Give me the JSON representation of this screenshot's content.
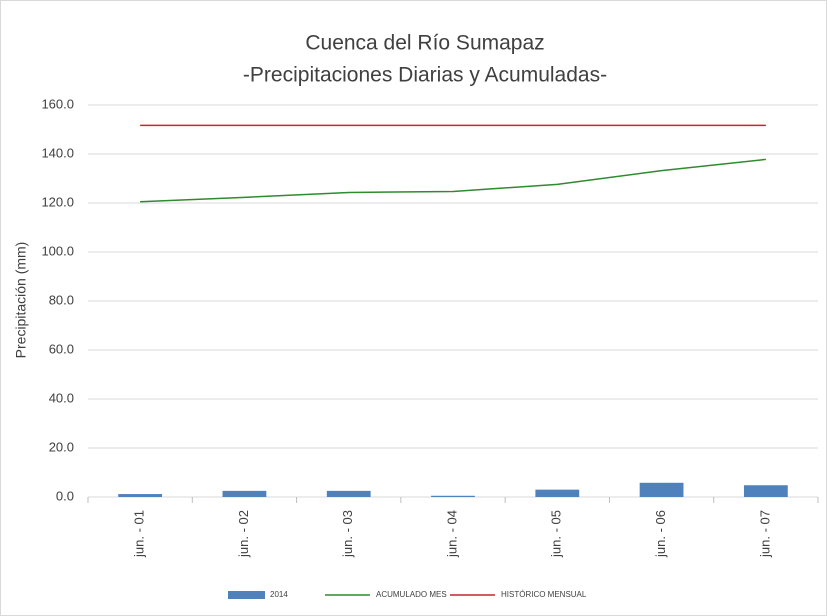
{
  "chart_data": {
    "type": "bar_line",
    "title": "Cuenca del Río Sumapaz",
    "subtitle": "-Precipitaciones Diarias y Acumuladas-",
    "y_label": "Precipitación (mm)",
    "categories": [
      "jun. - 01",
      "jun. - 02",
      "jun. - 03",
      "jun. - 04",
      "jun. - 05",
      "jun. - 06",
      "jun. - 07"
    ],
    "series": [
      {
        "name": "2014",
        "type": "bar",
        "color": "#4f81bd",
        "values": [
          1.2,
          2.5,
          2.5,
          0.5,
          3.0,
          5.8,
          4.8
        ]
      },
      {
        "name": "ACUMULADO MES",
        "type": "line",
        "color": "#2e8b2e",
        "values": [
          120.5,
          122.3,
          124.3,
          124.7,
          127.6,
          133.2,
          137.8
        ]
      },
      {
        "name": "HISTÓRICO MENSUAL",
        "type": "line",
        "color": "#c0282d",
        "values": [
          151.7,
          151.7,
          151.7,
          151.7,
          151.7,
          151.7,
          151.7
        ]
      }
    ],
    "ylim": [
      0,
      160
    ],
    "yticks": [
      {
        "value": 0,
        "label": "0.0"
      },
      {
        "value": 20,
        "label": "20.0"
      },
      {
        "value": 40,
        "label": "40.0"
      },
      {
        "value": 60,
        "label": "60.0"
      },
      {
        "value": 80,
        "label": "80.0"
      },
      {
        "value": 100,
        "label": "100.0"
      },
      {
        "value": 120,
        "label": "120.0"
      },
      {
        "value": 140,
        "label": "140.0"
      },
      {
        "value": 160,
        "label": "160.0"
      }
    ],
    "grid": true,
    "legend": "bottom"
  }
}
